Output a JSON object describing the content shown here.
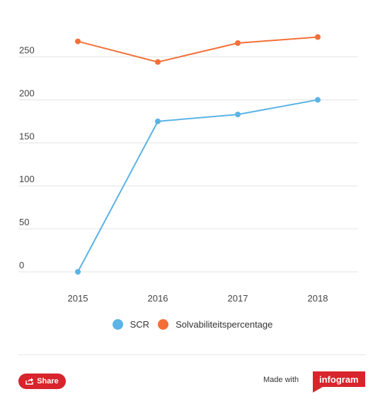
{
  "chart_data": {
    "type": "line",
    "categories": [
      "2015",
      "2016",
      "2017",
      "2018"
    ],
    "series": [
      {
        "name": "SCR",
        "color": "#5ab4e5",
        "values": [
          0,
          175,
          183,
          200
        ]
      },
      {
        "name": "Solvabiliteitspercentage",
        "color": "#f36f36",
        "values": [
          268,
          244,
          266,
          273
        ]
      }
    ],
    "yticks": [
      "0",
      "50",
      "100",
      "150",
      "200",
      "250"
    ],
    "ylim": [
      0,
      280
    ],
    "grid": true,
    "legend_position": "bottom"
  },
  "footer": {
    "share_label": "Share",
    "made_with": "Made with",
    "brand": "infogram",
    "brand_color": "#d8242c"
  }
}
